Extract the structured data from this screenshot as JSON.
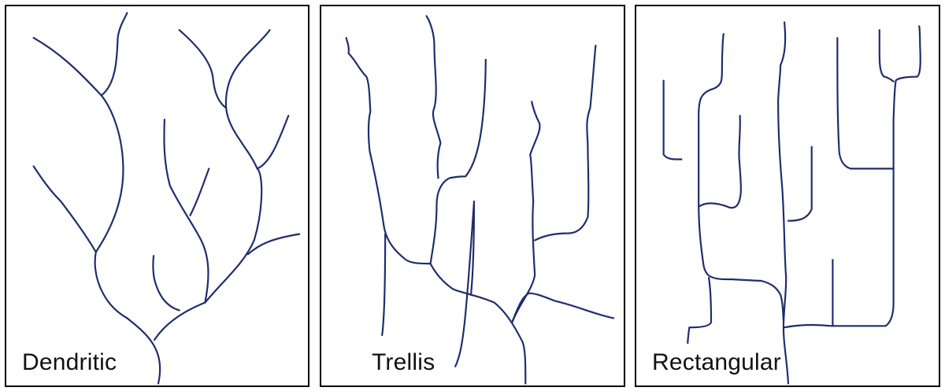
{
  "panels": [
    {
      "label": "Dendritic"
    },
    {
      "label": "Trellis"
    },
    {
      "label": "Rectangular"
    }
  ],
  "colors": {
    "river": "#1f2d6b",
    "border": "#000000",
    "background": "#ffffff"
  }
}
